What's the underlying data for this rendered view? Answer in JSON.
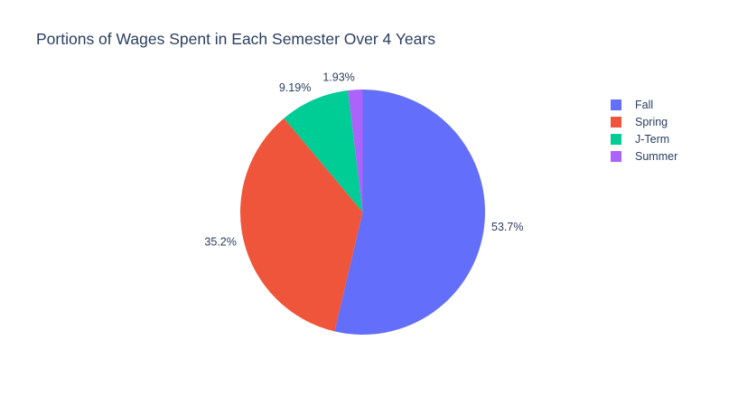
{
  "chart_data": {
    "type": "pie",
    "title": "Portions of Wages Spent in Each Semester Over 4 Years",
    "labels": [
      "Fall",
      "Spring",
      "J-Term",
      "Summer"
    ],
    "values": [
      53.7,
      35.2,
      9.19,
      1.93
    ],
    "percent_labels": [
      "53.7%",
      "35.2%",
      "9.19%",
      "1.93%"
    ],
    "colors": [
      "#636efa",
      "#ef553b",
      "#00cc96",
      "#ab63fa"
    ],
    "direction": "clockwise",
    "start": "top",
    "legend": "top-right"
  }
}
